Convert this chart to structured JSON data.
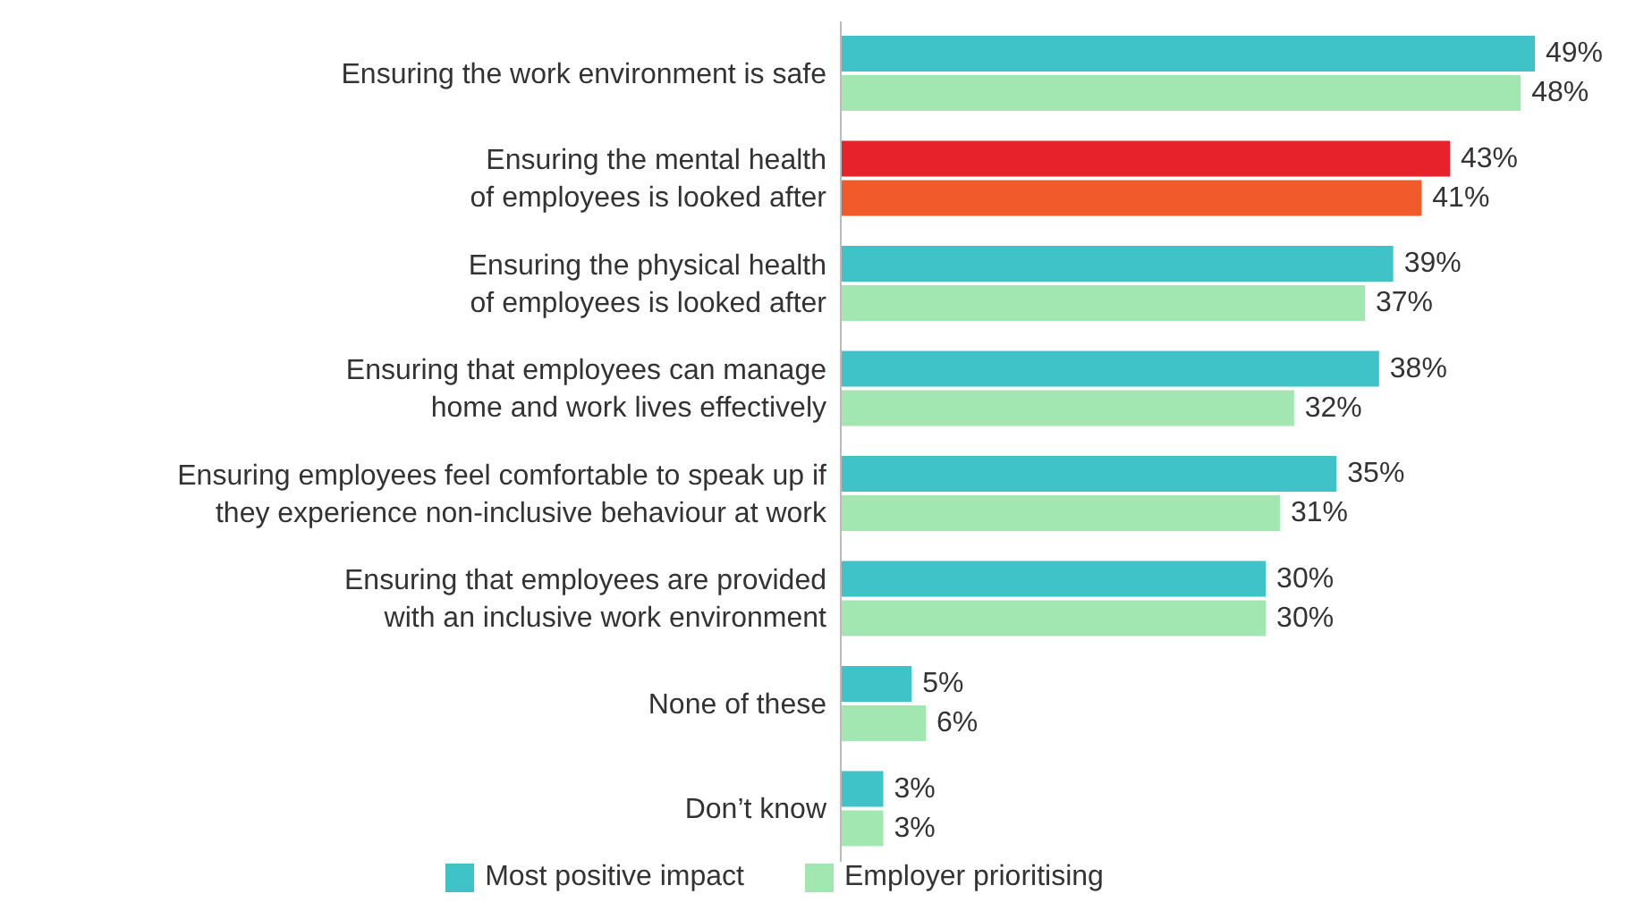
{
  "chart_data": {
    "type": "bar",
    "orientation": "horizontal",
    "categories": [
      "Ensuring the work environment is safe",
      "Ensuring the mental health of employees is looked after",
      "Ensuring the physical health of employees is looked after",
      "Ensuring that employees can manage home and work lives effectively",
      "Ensuring employees feel comfortable to speak up if they experience non-inclusive behaviour at work",
      "Ensuring that employees are provided with an inclusive work environment",
      "None of these",
      "Don’t know"
    ],
    "series": [
      {
        "name": "Most positive impact",
        "color": "#40c3c8",
        "colors": [
          "#40c3c8",
          "#e8222a",
          "#40c3c8",
          "#40c3c8",
          "#40c3c8",
          "#40c3c8",
          "#40c3c8",
          "#40c3c8"
        ],
        "values": [
          49,
          43,
          39,
          38,
          35,
          30,
          5,
          3
        ],
        "value_labels": [
          "49%",
          "43%",
          "39%",
          "38%",
          "35%",
          "30%",
          "5%",
          "3%"
        ]
      },
      {
        "name": "Employer prioritising",
        "color": "#a2e7b1",
        "colors": [
          "#a2e7b1",
          "#f15a2b",
          "#a2e7b1",
          "#a2e7b1",
          "#a2e7b1",
          "#a2e7b1",
          "#a2e7b1",
          "#a2e7b1"
        ],
        "values": [
          48,
          41,
          37,
          32,
          31,
          30,
          6,
          3
        ],
        "value_labels": [
          "48%",
          "41%",
          "37%",
          "32%",
          "31%",
          "30%",
          "6%",
          "3%"
        ]
      }
    ],
    "tick_labels": "y",
    "legend": "bottom"
  }
}
